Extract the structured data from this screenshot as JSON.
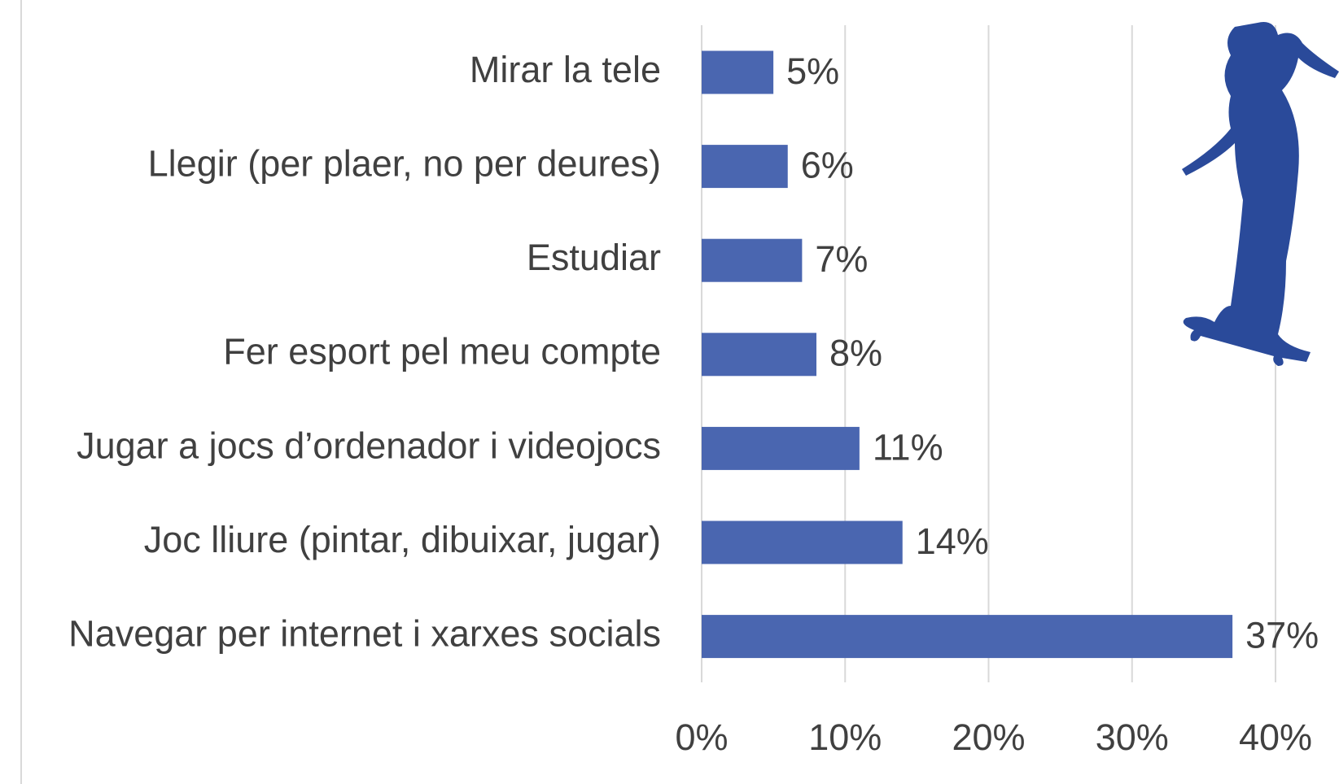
{
  "chart_data": {
    "type": "barh",
    "categories": [
      "Mirar la tele",
      "Llegir (per plaer, no per deures)",
      "Estudiar",
      "Fer esport pel meu compte",
      "Jugar a jocs d’ordenador i videojocs",
      "Joc lliure (pintar, dibuixar, jugar)",
      "Navegar per internet i xarxes socials"
    ],
    "values": [
      5,
      6,
      7,
      8,
      11,
      14,
      37
    ],
    "value_labels": [
      "5%",
      "6%",
      "7%",
      "8%",
      "11%",
      "14%",
      "37%"
    ],
    "color": "#4a66b0",
    "xlim": [
      0,
      40
    ],
    "xticks": [
      {
        "value": 0,
        "label": "0%"
      },
      {
        "value": 10,
        "label": "10%"
      },
      {
        "value": 20,
        "label": "20%"
      },
      {
        "value": 30,
        "label": "30%"
      },
      {
        "value": 40,
        "label": "40%"
      }
    ],
    "grid": true
  }
}
